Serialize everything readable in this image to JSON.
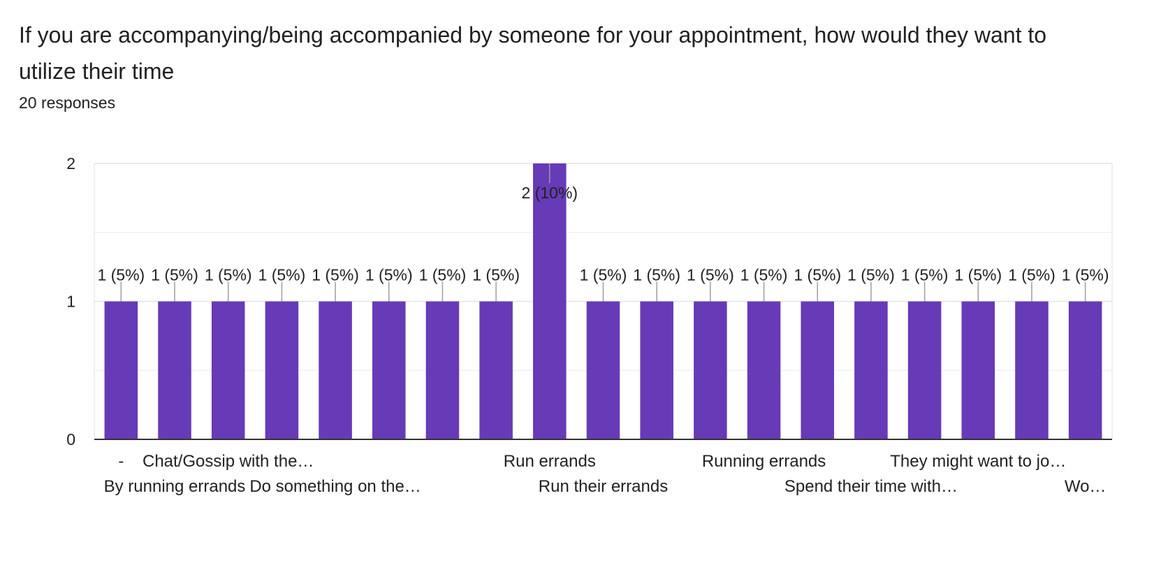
{
  "header": {
    "question": "If you are accompanying/being accompanied by someone for your appointment, how would they want to utilize their time",
    "responses": "20 responses"
  },
  "colors": {
    "bar": "#673ab7",
    "grid": "#e6e6e6",
    "axis": "#333333",
    "text": "#222222"
  },
  "chart_data": {
    "type": "bar",
    "title": "",
    "xlabel": "",
    "ylabel": "",
    "ylim": [
      0,
      2
    ],
    "yticks": [
      0,
      1,
      2
    ],
    "grid": true,
    "categories": [
      "-",
      "By running errands",
      "Chat/Gossip with the…",
      "",
      "Do something on the…",
      "",
      "",
      "",
      "Run errands",
      "Run their errands",
      "",
      "",
      "Running errands",
      "",
      "Spend their time with…",
      "",
      "They might want to jo…",
      "",
      "Wo…"
    ],
    "values": [
      1,
      1,
      1,
      1,
      1,
      1,
      1,
      1,
      2,
      1,
      1,
      1,
      1,
      1,
      1,
      1,
      1,
      1,
      1
    ],
    "data_labels": [
      "1 (5%)",
      "1 (5%)",
      "1 (5%)",
      "1 (5%)",
      "1 (5%)",
      "1 (5%)",
      "1 (5%)",
      "1 (5%)",
      "2 (10%)",
      "1 (5%)",
      "1 (5%)",
      "1 (5%)",
      "1 (5%)",
      "1 (5%)",
      "1 (5%)",
      "1 (5%)",
      "1 (5%)",
      "1 (5%)",
      "1 (5%)"
    ]
  }
}
